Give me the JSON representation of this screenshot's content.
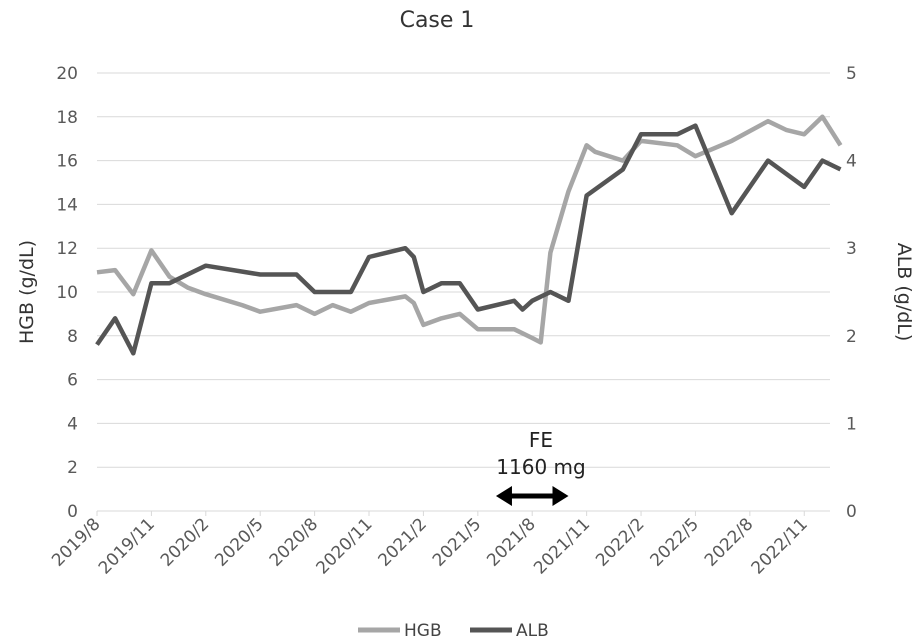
{
  "chart_data": {
    "type": "line",
    "title": "Case 1",
    "ylabel": "HGB (g/dL)",
    "y2label": "ALB (g/dL)",
    "ylim": [
      0,
      20
    ],
    "y2lim": [
      0,
      5
    ],
    "yticks": [
      "0",
      "2",
      "4",
      "6",
      "8",
      "10",
      "12",
      "14",
      "16",
      "18",
      "20"
    ],
    "y2ticks": [
      "0",
      "1",
      "2",
      "3",
      "4",
      "5"
    ],
    "x_range": [
      "2019/8",
      "2022/12"
    ],
    "x_ticks": [
      "2019/8",
      "2019/11",
      "2020/2",
      "2020/5",
      "2020/8",
      "2020/11",
      "2021/2",
      "2021/5",
      "2021/8",
      "2021/11",
      "2022/2",
      "2022/5",
      "2022/8",
      "2022/11"
    ],
    "grid": true,
    "legend_position": "bottom",
    "annotation": {
      "line1": "FE",
      "line2": "1160 mg",
      "start": "2021/6",
      "end": "2021/10"
    },
    "series": [
      {
        "name": "HGB",
        "axis": "left",
        "color": "#a6a6a6",
        "points": [
          [
            "2019/8",
            10.9
          ],
          [
            "2019/9",
            11.0
          ],
          [
            "2019/10",
            9.9
          ],
          [
            "2019/11",
            11.9
          ],
          [
            "2019/12",
            10.7
          ],
          [
            "2020/1",
            10.2
          ],
          [
            "2020/2",
            9.9
          ],
          [
            "2020/4",
            9.4
          ],
          [
            "2020/5",
            9.1
          ],
          [
            "2020/7",
            9.4
          ],
          [
            "2020/8",
            9.0
          ],
          [
            "2020/9",
            9.4
          ],
          [
            "2020/10",
            9.1
          ],
          [
            "2020/11",
            9.5
          ],
          [
            "2021/1",
            9.8
          ],
          [
            "2021/1/15",
            9.5
          ],
          [
            "2021/2",
            8.5
          ],
          [
            "2021/3",
            8.8
          ],
          [
            "2021/4",
            9.0
          ],
          [
            "2021/5",
            8.3
          ],
          [
            "2021/7",
            8.3
          ],
          [
            "2021/8",
            7.9
          ],
          [
            "2021/8/15",
            7.7
          ],
          [
            "2021/9",
            11.8
          ],
          [
            "2021/10",
            14.6
          ],
          [
            "2021/11",
            16.7
          ],
          [
            "2021/11/15",
            16.4
          ],
          [
            "2022/1",
            16.0
          ],
          [
            "2022/2",
            16.9
          ],
          [
            "2022/4",
            16.7
          ],
          [
            "2022/5",
            16.2
          ],
          [
            "2022/7",
            16.9
          ],
          [
            "2022/9",
            17.8
          ],
          [
            "2022/10",
            17.4
          ],
          [
            "2022/11",
            17.2
          ],
          [
            "2022/12",
            18.0
          ],
          [
            "2023/1",
            16.7
          ]
        ]
      },
      {
        "name": "ALB",
        "axis": "right",
        "color": "#555555",
        "points": [
          [
            "2019/8",
            1.9
          ],
          [
            "2019/9",
            2.2
          ],
          [
            "2019/10",
            1.8
          ],
          [
            "2019/11",
            2.6
          ],
          [
            "2019/12",
            2.6
          ],
          [
            "2020/2",
            2.8
          ],
          [
            "2020/5",
            2.7
          ],
          [
            "2020/7",
            2.7
          ],
          [
            "2020/8",
            2.5
          ],
          [
            "2020/10",
            2.5
          ],
          [
            "2020/11",
            2.9
          ],
          [
            "2021/1",
            3.0
          ],
          [
            "2021/1/15",
            2.9
          ],
          [
            "2021/2",
            2.5
          ],
          [
            "2021/3",
            2.6
          ],
          [
            "2021/4",
            2.6
          ],
          [
            "2021/5",
            2.3
          ],
          [
            "2021/7",
            2.4
          ],
          [
            "2021/7/15",
            2.3
          ],
          [
            "2021/8",
            2.4
          ],
          [
            "2021/9",
            2.5
          ],
          [
            "2021/10",
            2.4
          ],
          [
            "2021/11",
            3.6
          ],
          [
            "2022/1",
            3.9
          ],
          [
            "2022/2",
            4.3
          ],
          [
            "2022/4",
            4.3
          ],
          [
            "2022/5",
            4.4
          ],
          [
            "2022/7",
            3.4
          ],
          [
            "2022/9",
            4.0
          ],
          [
            "2022/11",
            3.7
          ],
          [
            "2022/12",
            4.0
          ],
          [
            "2023/1",
            3.9
          ]
        ]
      }
    ]
  }
}
